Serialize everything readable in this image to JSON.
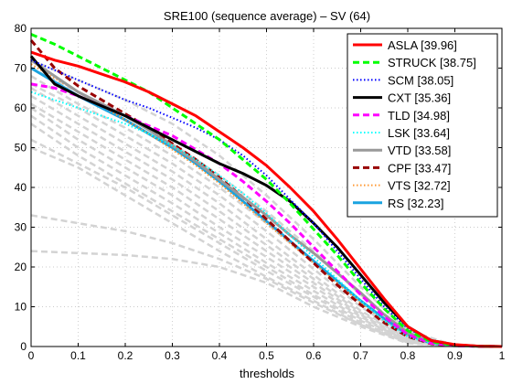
{
  "chart_data": {
    "type": "line",
    "title": "SRE100 (sequence average) – SV (64)",
    "xlabel": "thresholds",
    "ylabel": "",
    "xlim": [
      0,
      1
    ],
    "ylim": [
      0,
      80
    ],
    "xticks": [
      0,
      0.1,
      0.2,
      0.3,
      0.4,
      0.5,
      0.6,
      0.7,
      0.8,
      0.9,
      1
    ],
    "xtick_labels": [
      "0",
      "0.1",
      "0.2",
      "0.3",
      "0.4",
      "0.5",
      "0.6",
      "0.7",
      "0.8",
      "0.9",
      "1"
    ],
    "yticks": [
      0,
      10,
      20,
      30,
      40,
      50,
      60,
      70,
      80
    ],
    "ytick_labels": [
      "0",
      "10",
      "20",
      "30",
      "40",
      "50",
      "60",
      "70",
      "80"
    ],
    "grid": true,
    "legend_position": "top-right",
    "series": [
      {
        "name": "ASLA",
        "score": "[39.96]",
        "color": "#ff0000",
        "dash": "solid",
        "width": 3,
        "x": [
          0,
          0.05,
          0.1,
          0.15,
          0.2,
          0.25,
          0.3,
          0.35,
          0.4,
          0.45,
          0.5,
          0.55,
          0.6,
          0.65,
          0.7,
          0.75,
          0.8,
          0.85,
          0.9,
          0.95,
          1
        ],
        "y": [
          74,
          72,
          70.5,
          68.5,
          66.5,
          64,
          61,
          58,
          54,
          50,
          45.5,
          40,
          34,
          27,
          19.5,
          12,
          5,
          1.5,
          0.5,
          0.1,
          0
        ]
      },
      {
        "name": "STRUCK",
        "score": "[38.75]",
        "color": "#00ff00",
        "dash": "dashed",
        "width": 3,
        "x": [
          0,
          0.05,
          0.1,
          0.15,
          0.2,
          0.25,
          0.3,
          0.35,
          0.4,
          0.45,
          0.5,
          0.55,
          0.6,
          0.65,
          0.7,
          0.75,
          0.8,
          0.85,
          0.9,
          0.95,
          1
        ],
        "y": [
          78.5,
          76,
          73,
          70,
          67,
          64,
          60,
          56,
          52,
          47,
          42,
          36,
          29.5,
          23,
          16,
          9.5,
          4,
          1.2,
          0.3,
          0.1,
          0
        ]
      },
      {
        "name": "SCM",
        "score": "[38.05]",
        "color": "#0000ff",
        "dash": "dotted",
        "width": 2,
        "x": [
          0,
          0.05,
          0.1,
          0.15,
          0.2,
          0.25,
          0.3,
          0.35,
          0.4,
          0.45,
          0.5,
          0.55,
          0.6,
          0.65,
          0.7,
          0.75,
          0.8,
          0.85,
          0.9,
          0.95,
          1
        ],
        "y": [
          72,
          69.5,
          67,
          64.5,
          62,
          60,
          57.5,
          55,
          52,
          48,
          43,
          37,
          31,
          24,
          17,
          10,
          4.5,
          1.5,
          0.4,
          0.1,
          0
        ]
      },
      {
        "name": "CXT",
        "score": "[35.36]",
        "color": "#000000",
        "dash": "solid",
        "width": 3,
        "x": [
          0,
          0.05,
          0.1,
          0.15,
          0.2,
          0.25,
          0.3,
          0.35,
          0.4,
          0.45,
          0.5,
          0.55,
          0.6,
          0.65,
          0.7,
          0.75,
          0.8,
          0.85,
          0.9,
          0.95,
          1
        ],
        "y": [
          73,
          66,
          63,
          60.5,
          58,
          55,
          52,
          49,
          46,
          43.5,
          40.5,
          36.5,
          31,
          25,
          18,
          11,
          5,
          1.5,
          0.4,
          0.1,
          0
        ]
      },
      {
        "name": "TLD",
        "score": "[34.98]",
        "color": "#ff00ff",
        "dash": "dashed",
        "width": 3,
        "x": [
          0,
          0.05,
          0.1,
          0.15,
          0.2,
          0.25,
          0.3,
          0.35,
          0.4,
          0.45,
          0.5,
          0.55,
          0.6,
          0.65,
          0.7,
          0.75,
          0.8,
          0.85,
          0.9,
          0.95,
          1
        ],
        "y": [
          66,
          65,
          63,
          60.5,
          58,
          55.5,
          53,
          49.5,
          46,
          41.5,
          36.5,
          31,
          25,
          19,
          13,
          7.5,
          3,
          0.8,
          0.2,
          0.05,
          0
        ]
      },
      {
        "name": "LSK",
        "score": "[33.64]",
        "color": "#00ffff",
        "dash": "dotted",
        "width": 2,
        "x": [
          0,
          0.05,
          0.1,
          0.15,
          0.2,
          0.25,
          0.3,
          0.35,
          0.4,
          0.45,
          0.5,
          0.55,
          0.6,
          0.65,
          0.7,
          0.75,
          0.8,
          0.85,
          0.9,
          0.95,
          1
        ],
        "y": [
          64,
          62,
          60,
          58,
          56,
          53.5,
          50.5,
          47,
          43,
          38.5,
          33.5,
          28,
          22.5,
          17,
          11.5,
          6.5,
          2.5,
          0.7,
          0.2,
          0.05,
          0
        ]
      },
      {
        "name": "VTD",
        "score": "[33.58]",
        "color": "#999999",
        "dash": "solid",
        "width": 3,
        "x": [
          0,
          0.05,
          0.1,
          0.15,
          0.2,
          0.25,
          0.3,
          0.35,
          0.4,
          0.45,
          0.5,
          0.55,
          0.6,
          0.65,
          0.7,
          0.75,
          0.8,
          0.85,
          0.9,
          0.95,
          1
        ],
        "y": [
          72,
          68,
          64,
          61,
          58,
          54.5,
          50.5,
          46.5,
          42,
          37.5,
          33,
          28,
          23.5,
          18.5,
          13.5,
          8,
          3.5,
          1,
          0.2,
          0.05,
          0
        ]
      },
      {
        "name": "CPF",
        "score": "[33.47]",
        "color": "#990000",
        "dash": "dashed",
        "width": 3,
        "x": [
          0,
          0.05,
          0.1,
          0.15,
          0.2,
          0.25,
          0.3,
          0.35,
          0.4,
          0.45,
          0.5,
          0.55,
          0.6,
          0.65,
          0.7,
          0.75,
          0.8,
          0.85,
          0.9,
          0.95,
          1
        ],
        "y": [
          77,
          70,
          65.5,
          62,
          58.5,
          55,
          51,
          47,
          42.5,
          37.5,
          32,
          26.5,
          21,
          15.5,
          10.5,
          6,
          2.5,
          0.7,
          0.2,
          0.05,
          0
        ]
      },
      {
        "name": "VTS",
        "score": "[32.72]",
        "color": "#ff9933",
        "dash": "dotted",
        "width": 2,
        "x": [
          0,
          0.05,
          0.1,
          0.15,
          0.2,
          0.25,
          0.3,
          0.35,
          0.4,
          0.45,
          0.5,
          0.55,
          0.6,
          0.65,
          0.7,
          0.75,
          0.8,
          0.85,
          0.9,
          0.95,
          1
        ],
        "y": [
          71,
          67.5,
          64,
          60.5,
          57,
          53.5,
          49.5,
          45.5,
          41,
          36,
          31,
          26,
          21,
          16,
          11,
          6.5,
          2.8,
          0.8,
          0.2,
          0.05,
          0
        ]
      },
      {
        "name": "RS",
        "score": "[32.23]",
        "color": "#1aa3e0",
        "dash": "solid",
        "width": 3,
        "x": [
          0,
          0.05,
          0.1,
          0.15,
          0.2,
          0.25,
          0.3,
          0.35,
          0.4,
          0.45,
          0.5,
          0.55,
          0.6,
          0.65,
          0.7,
          0.75,
          0.8,
          0.85,
          0.9,
          0.95,
          1
        ],
        "y": [
          70,
          66.5,
          63,
          60,
          57,
          53.5,
          50,
          46,
          41.5,
          36.5,
          31.5,
          26.5,
          21.5,
          16.5,
          11.5,
          7,
          3,
          0.8,
          0.2,
          0.05,
          0
        ]
      }
    ],
    "background_series": {
      "color": "#d3d3d3",
      "dash": "dashed",
      "width": 2.5,
      "x": [
        0,
        0.1,
        0.2,
        0.3,
        0.4,
        0.5,
        0.6,
        0.7,
        0.8,
        0.9,
        1
      ],
      "curves": [
        [
          72,
          67,
          62,
          56,
          48,
          38,
          27,
          15,
          4,
          0.3,
          0
        ],
        [
          70,
          64,
          58,
          51,
          43,
          34,
          24,
          13,
          3.5,
          0.2,
          0
        ],
        [
          68,
          61,
          55,
          48,
          40,
          31,
          21,
          11,
          3,
          0.2,
          0
        ],
        [
          66,
          60,
          53,
          46,
          38,
          29,
          19.5,
          10,
          2.5,
          0.1,
          0
        ],
        [
          65,
          58,
          51,
          44,
          36,
          27,
          18,
          9,
          2.2,
          0.1,
          0
        ],
        [
          63,
          56,
          49,
          42,
          34,
          25.5,
          17,
          8.5,
          2,
          0.1,
          0
        ],
        [
          61,
          54,
          47,
          40,
          32,
          24,
          16,
          8,
          1.8,
          0.1,
          0
        ],
        [
          60,
          52,
          45,
          38,
          30,
          22.5,
          15,
          7.5,
          1.5,
          0.1,
          0
        ],
        [
          58,
          50,
          43,
          36,
          28.5,
          21,
          14,
          7,
          1.5,
          0.1,
          0
        ],
        [
          56,
          48,
          41,
          34,
          27,
          20,
          13,
          6.5,
          1.3,
          0.1,
          0
        ],
        [
          52,
          46,
          40,
          33,
          26,
          19,
          12.5,
          6,
          1.2,
          0.1,
          0
        ],
        [
          50,
          45,
          38,
          31,
          24,
          17.5,
          11.5,
          5.5,
          1,
          0.1,
          0
        ],
        [
          33,
          31,
          29,
          26,
          22,
          17,
          11,
          5.5,
          1,
          0.1,
          0
        ],
        [
          24,
          23.5,
          23,
          22,
          20,
          16,
          10,
          5,
          0.8,
          0.1,
          0
        ]
      ]
    }
  }
}
